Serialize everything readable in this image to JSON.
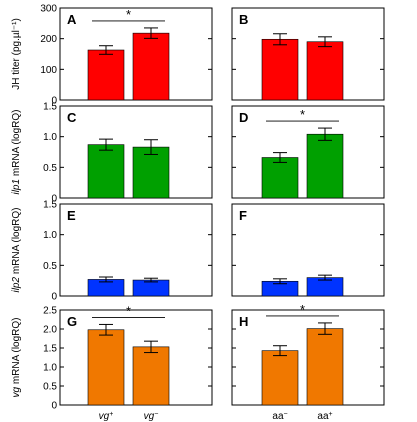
{
  "chart_data": [
    {
      "panel": "A",
      "type": "bar",
      "ylabel": "JH titer (pg.µl⁻¹)",
      "ylabel_italic": "",
      "ylabel_rest": "",
      "ylim": [
        0,
        300
      ],
      "ticks": [
        0,
        100,
        200,
        300
      ],
      "tick_labels": [
        "0",
        "100",
        "200",
        "300"
      ],
      "color": "#ff0000",
      "categories": [
        "vg⁺",
        "vg⁻"
      ],
      "values": [
        163,
        218
      ],
      "errors": [
        14,
        17
      ],
      "significance": "*"
    },
    {
      "panel": "B",
      "type": "bar",
      "ylim": [
        0,
        300
      ],
      "ticks": [
        0,
        100,
        200,
        300
      ],
      "tick_labels": [],
      "color": "#ff0000",
      "categories": [
        "aa⁻",
        "aa⁺"
      ],
      "values": [
        198,
        190
      ],
      "errors": [
        18,
        16
      ],
      "significance": ""
    },
    {
      "panel": "C",
      "type": "bar",
      "ylabel": "",
      "ylabel_italic": "ilp1",
      "ylabel_rest": " mRNA (logRQ)",
      "ylim": [
        0,
        1.5
      ],
      "ticks": [
        0,
        0.5,
        1.0,
        1.5
      ],
      "tick_labels": [
        "0",
        "0.5",
        "1.0",
        "1.5"
      ],
      "color": "#00a000",
      "categories": [
        "vg⁺",
        "vg⁻"
      ],
      "values": [
        0.87,
        0.83
      ],
      "errors": [
        0.09,
        0.12
      ],
      "significance": ""
    },
    {
      "panel": "D",
      "type": "bar",
      "ylim": [
        0,
        1.5
      ],
      "ticks": [
        0,
        0.5,
        1.0,
        1.5
      ],
      "tick_labels": [],
      "color": "#00a000",
      "categories": [
        "aa⁻",
        "aa⁺"
      ],
      "values": [
        0.66,
        1.04
      ],
      "errors": [
        0.08,
        0.1
      ],
      "significance": "*"
    },
    {
      "panel": "E",
      "type": "bar",
      "ylabel": "",
      "ylabel_italic": "ilp2",
      "ylabel_rest": " mRNA (logRQ)",
      "ylim": [
        0,
        1.5
      ],
      "ticks": [
        0,
        0.5,
        1.0,
        1.5
      ],
      "tick_labels": [
        "0",
        "0.5",
        "1.0",
        "1.5"
      ],
      "color": "#0033ff",
      "categories": [
        "vg⁺",
        "vg⁻"
      ],
      "values": [
        0.27,
        0.26
      ],
      "errors": [
        0.04,
        0.03
      ],
      "significance": ""
    },
    {
      "panel": "F",
      "type": "bar",
      "ylim": [
        0,
        1.5
      ],
      "ticks": [
        0,
        0.5,
        1.0,
        1.5
      ],
      "tick_labels": [],
      "color": "#0033ff",
      "categories": [
        "aa⁻",
        "aa⁺"
      ],
      "values": [
        0.24,
        0.3
      ],
      "errors": [
        0.04,
        0.04
      ],
      "significance": ""
    },
    {
      "panel": "G",
      "type": "bar",
      "ylabel": "",
      "ylabel_italic": "vg",
      "ylabel_rest": " mRNA (logRQ)",
      "ylim": [
        0,
        2.5
      ],
      "ticks": [
        0,
        0.5,
        1.0,
        1.5,
        2.0,
        2.5
      ],
      "tick_labels": [
        "0",
        "0.5",
        "1.0",
        "1.5",
        "2.0",
        "2.5"
      ],
      "color": "#f07800",
      "categories": [
        "vg⁺",
        "vg⁻"
      ],
      "values": [
        1.98,
        1.53
      ],
      "errors": [
        0.14,
        0.15
      ],
      "significance": "*"
    },
    {
      "panel": "H",
      "type": "bar",
      "ylim": [
        0,
        2.5
      ],
      "ticks": [
        0,
        0.5,
        1.0,
        1.5,
        2.0,
        2.5
      ],
      "tick_labels": [],
      "color": "#f07800",
      "categories": [
        "aa⁻",
        "aa⁺"
      ],
      "values": [
        1.43,
        2.01
      ],
      "errors": [
        0.13,
        0.15
      ],
      "significance": "*"
    }
  ],
  "x_axis": {
    "left": [
      {
        "base": "vg",
        "sup": "+"
      },
      {
        "base": "vg",
        "sup": "−"
      }
    ],
    "right": [
      {
        "base": "aa",
        "sup": "−"
      },
      {
        "base": "aa",
        "sup": "+"
      }
    ]
  }
}
